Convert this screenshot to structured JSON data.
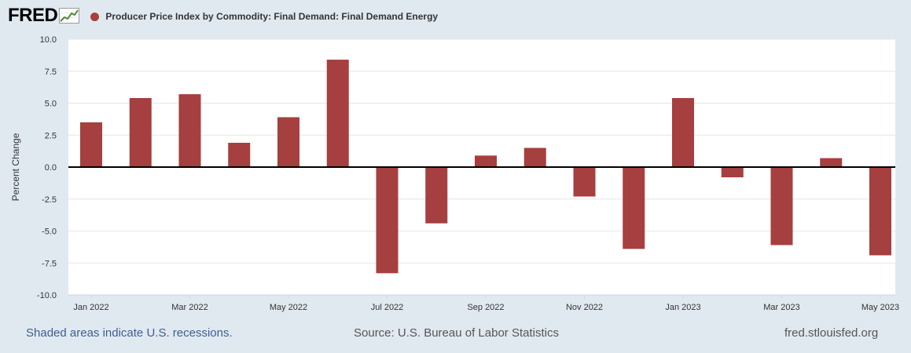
{
  "header": {
    "logo_text": "FRED",
    "series_title": "Producer Price Index by Commodity: Final Demand: Final Demand Energy",
    "series_color": "#a63f3f"
  },
  "chart_data": {
    "type": "bar",
    "title": "Producer Price Index by Commodity: Final Demand: Final Demand Energy",
    "ylabel": "Percent Change",
    "xlabel": "",
    "ylim": [
      -10,
      10
    ],
    "yticks": [
      "10.0",
      "7.5",
      "5.0",
      "2.5",
      "0.0",
      "-2.5",
      "-5.0",
      "-7.5",
      "-10.0"
    ],
    "xtick_labels": [
      {
        "label": "Jan 2022",
        "index": 0
      },
      {
        "label": "Mar 2022",
        "index": 2
      },
      {
        "label": "May 2022",
        "index": 4
      },
      {
        "label": "Jul 2022",
        "index": 6
      },
      {
        "label": "Sep 2022",
        "index": 8
      },
      {
        "label": "Nov 2022",
        "index": 10
      },
      {
        "label": "Jan 2023",
        "index": 12
      },
      {
        "label": "Mar 2023",
        "index": 14
      },
      {
        "label": "May 2023",
        "index": 16
      }
    ],
    "categories": [
      "Jan 2022",
      "Feb 2022",
      "Mar 2022",
      "Apr 2022",
      "May 2022",
      "Jun 2022",
      "Jul 2022",
      "Aug 2022",
      "Sep 2022",
      "Oct 2022",
      "Nov 2022",
      "Dec 2022",
      "Jan 2023",
      "Feb 2023",
      "Mar 2023",
      "Apr 2023",
      "May 2023"
    ],
    "values": [
      3.5,
      5.4,
      5.7,
      1.9,
      3.9,
      8.4,
      -8.3,
      -4.4,
      0.9,
      1.5,
      -2.3,
      -6.4,
      5.4,
      -0.8,
      -6.1,
      0.7,
      -6.9
    ],
    "bar_color": "#a63f3f",
    "grid": true
  },
  "footer": {
    "recession_note": "Shaded areas indicate U.S. recessions.",
    "source": "Source: U.S. Bureau of Labor Statistics",
    "site": "fred.stlouisfed.org"
  }
}
